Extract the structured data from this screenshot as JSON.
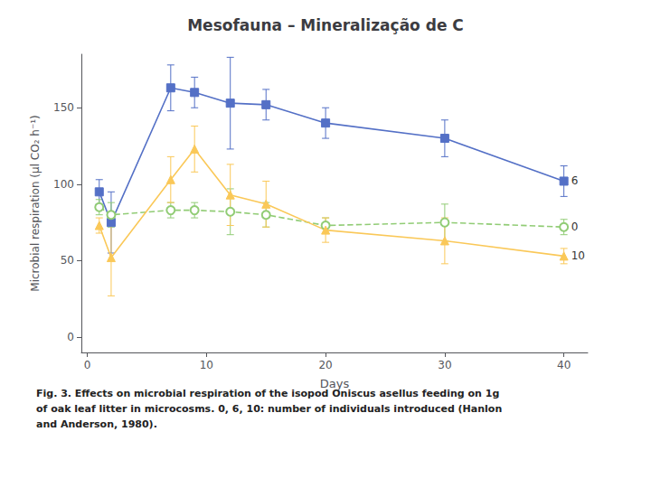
{
  "chart_data": {
    "type": "line",
    "title": "Mesofauna – Mineralização de C",
    "xlabel": "Days",
    "ylabel": "Microbial respiration (µl CO₂ h⁻¹)",
    "xlim": [
      -0.5,
      42
    ],
    "ylim": [
      -10,
      185
    ],
    "xticks": [
      0,
      10,
      20,
      30,
      40
    ],
    "yticks": [
      0,
      50,
      100,
      150
    ],
    "grid": false,
    "series": [
      {
        "name": "6",
        "marker": "square",
        "line_style": "solid",
        "x": [
          1,
          2,
          7,
          9,
          12,
          15,
          20,
          30,
          40
        ],
        "values": [
          95,
          75,
          163,
          160,
          153,
          152,
          140,
          130,
          102
        ],
        "yerr": [
          8,
          20,
          15,
          10,
          30,
          10,
          10,
          12,
          10
        ]
      },
      {
        "name": "0",
        "marker": "emptyCircle",
        "line_style": "dashed",
        "x": [
          1,
          2,
          7,
          9,
          12,
          15,
          20,
          30,
          40
        ],
        "values": [
          85,
          80,
          83,
          83,
          82,
          80,
          73,
          75,
          72
        ],
        "yerr": [
          5,
          8,
          5,
          5,
          15,
          8,
          5,
          12,
          5
        ]
      },
      {
        "name": "10",
        "marker": "triangle",
        "line_style": "solid",
        "x": [
          1,
          2,
          7,
          9,
          12,
          15,
          20,
          30,
          40
        ],
        "values": [
          73,
          52,
          103,
          123,
          93,
          87,
          70,
          63,
          53
        ],
        "yerr": [
          5,
          25,
          15,
          15,
          20,
          15,
          8,
          15,
          5
        ]
      }
    ],
    "caption": [
      "Fig. 3. Effects on microbial respiration of the isopod Oniscus asellus feeding on 1g",
      "of oak leaf litter in microcosms. 0, 6, 10: number of individuals introduced (Hanlon",
      "and Anderson, 1980)."
    ]
  }
}
